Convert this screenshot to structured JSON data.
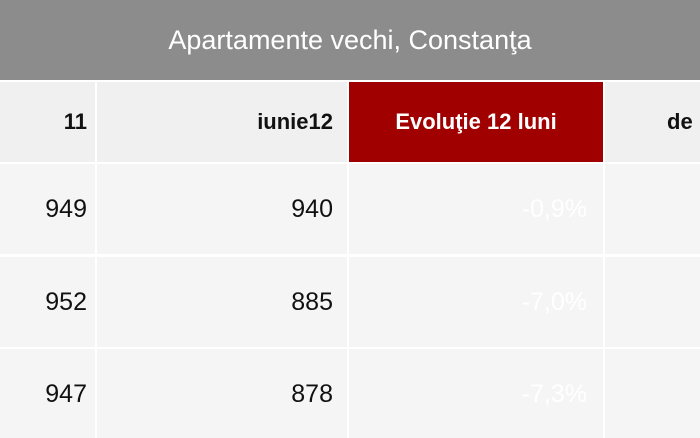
{
  "table": {
    "title": "Apartamente vechi, Constanţa",
    "header": [
      "11",
      "iunie12",
      "Evoluţie 12 luni",
      "de"
    ],
    "rows": [
      [
        "949",
        "940",
        "-0,9%"
      ],
      [
        "952",
        "885",
        "-7,0%"
      ],
      [
        "947",
        "878",
        "-7,3%"
      ]
    ]
  }
}
